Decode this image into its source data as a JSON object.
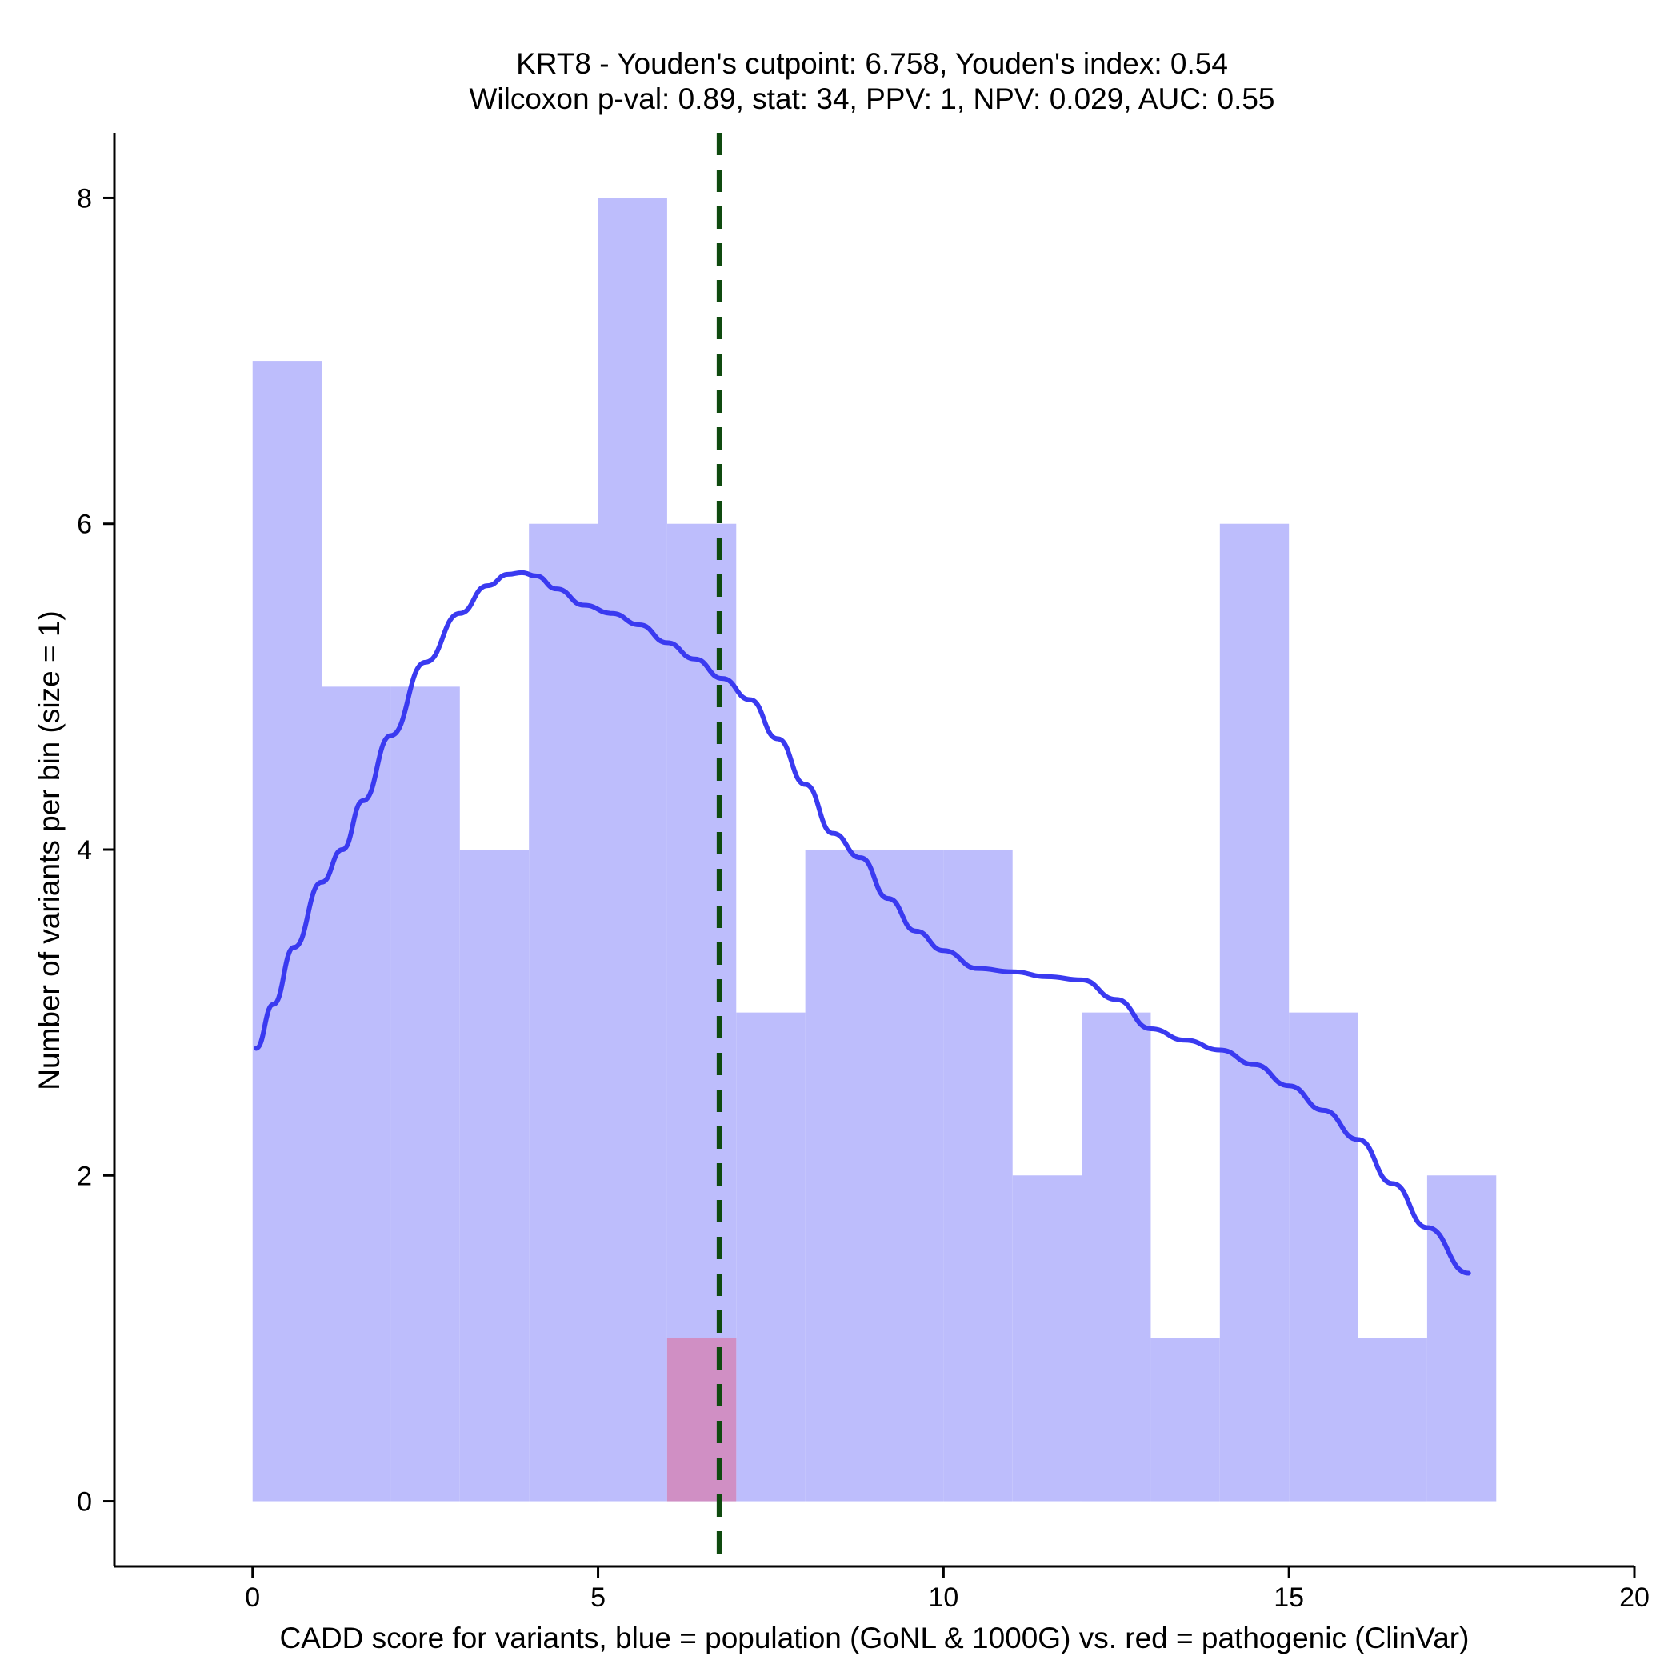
{
  "chart_data": {
    "type": "bar",
    "title_lines": [
      "KRT8 - Youden's cutpoint: 6.758, Youden's index: 0.54",
      "Wilcoxon p-val: 0.89, stat: 34, PPV: 1, NPV: 0.029, AUC: 0.55"
    ],
    "xlabel": "CADD score for variants, blue = population (GoNL & 1000G) vs. red = pathogenic (ClinVar)",
    "ylabel": "Number of variants per bin (size = 1)",
    "xlim": [
      -2,
      20
    ],
    "ylim": [
      -0.4,
      8.4
    ],
    "xticks": [
      0,
      5,
      10,
      15,
      20
    ],
    "yticks": [
      0,
      2,
      4,
      6,
      8
    ],
    "bin_size": 1,
    "series": [
      {
        "name": "population (GoNL & 1000G)",
        "color": "#bdbdfc",
        "bins": [
          {
            "x0": 0,
            "x1": 1,
            "count": 7
          },
          {
            "x0": 1,
            "x1": 2,
            "count": 5
          },
          {
            "x0": 2,
            "x1": 3,
            "count": 5
          },
          {
            "x0": 3,
            "x1": 4,
            "count": 4
          },
          {
            "x0": 4,
            "x1": 5,
            "count": 6
          },
          {
            "x0": 5,
            "x1": 6,
            "count": 8
          },
          {
            "x0": 6,
            "x1": 7,
            "count": 6
          },
          {
            "x0": 7,
            "x1": 8,
            "count": 3
          },
          {
            "x0": 8,
            "x1": 9,
            "count": 4
          },
          {
            "x0": 9,
            "x1": 10,
            "count": 4
          },
          {
            "x0": 10,
            "x1": 11,
            "count": 4
          },
          {
            "x0": 11,
            "x1": 12,
            "count": 2
          },
          {
            "x0": 12,
            "x1": 13,
            "count": 3
          },
          {
            "x0": 13,
            "x1": 14,
            "count": 1
          },
          {
            "x0": 14,
            "x1": 15,
            "count": 6
          },
          {
            "x0": 15,
            "x1": 16,
            "count": 3
          },
          {
            "x0": 16,
            "x1": 17,
            "count": 1
          },
          {
            "x0": 17,
            "x1": 18,
            "count": 2
          }
        ]
      },
      {
        "name": "pathogenic (ClinVar)",
        "color": "#d08fc4",
        "bins": [
          {
            "x0": 6,
            "x1": 7,
            "count": 1
          }
        ]
      }
    ],
    "density_curve": {
      "name": "population density",
      "color": "#3a3af0",
      "points": [
        [
          0.05,
          2.78
        ],
        [
          0.3,
          3.05
        ],
        [
          0.6,
          3.4
        ],
        [
          1.0,
          3.8
        ],
        [
          1.3,
          4.0
        ],
        [
          1.6,
          4.3
        ],
        [
          2.0,
          4.7
        ],
        [
          2.5,
          5.15
        ],
        [
          3.0,
          5.45
        ],
        [
          3.4,
          5.62
        ],
        [
          3.7,
          5.69
        ],
        [
          3.9,
          5.7
        ],
        [
          4.1,
          5.68
        ],
        [
          4.4,
          5.6
        ],
        [
          4.8,
          5.5
        ],
        [
          5.2,
          5.45
        ],
        [
          5.6,
          5.38
        ],
        [
          6.0,
          5.27
        ],
        [
          6.4,
          5.17
        ],
        [
          6.8,
          5.05
        ],
        [
          7.2,
          4.92
        ],
        [
          7.6,
          4.68
        ],
        [
          8.0,
          4.4
        ],
        [
          8.4,
          4.1
        ],
        [
          8.8,
          3.95
        ],
        [
          9.2,
          3.7
        ],
        [
          9.6,
          3.5
        ],
        [
          10.0,
          3.38
        ],
        [
          10.5,
          3.27
        ],
        [
          11.0,
          3.25
        ],
        [
          11.5,
          3.22
        ],
        [
          12.0,
          3.2
        ],
        [
          12.5,
          3.08
        ],
        [
          13.0,
          2.9
        ],
        [
          13.5,
          2.83
        ],
        [
          14.0,
          2.77
        ],
        [
          14.5,
          2.68
        ],
        [
          15.0,
          2.55
        ],
        [
          15.5,
          2.4
        ],
        [
          16.0,
          2.22
        ],
        [
          16.5,
          1.95
        ],
        [
          17.0,
          1.68
        ],
        [
          17.6,
          1.4
        ]
      ]
    },
    "cutpoint": {
      "label": "Youden's cutpoint",
      "x": 6.758,
      "color": "#0f4a0f",
      "style": "dashed"
    }
  }
}
